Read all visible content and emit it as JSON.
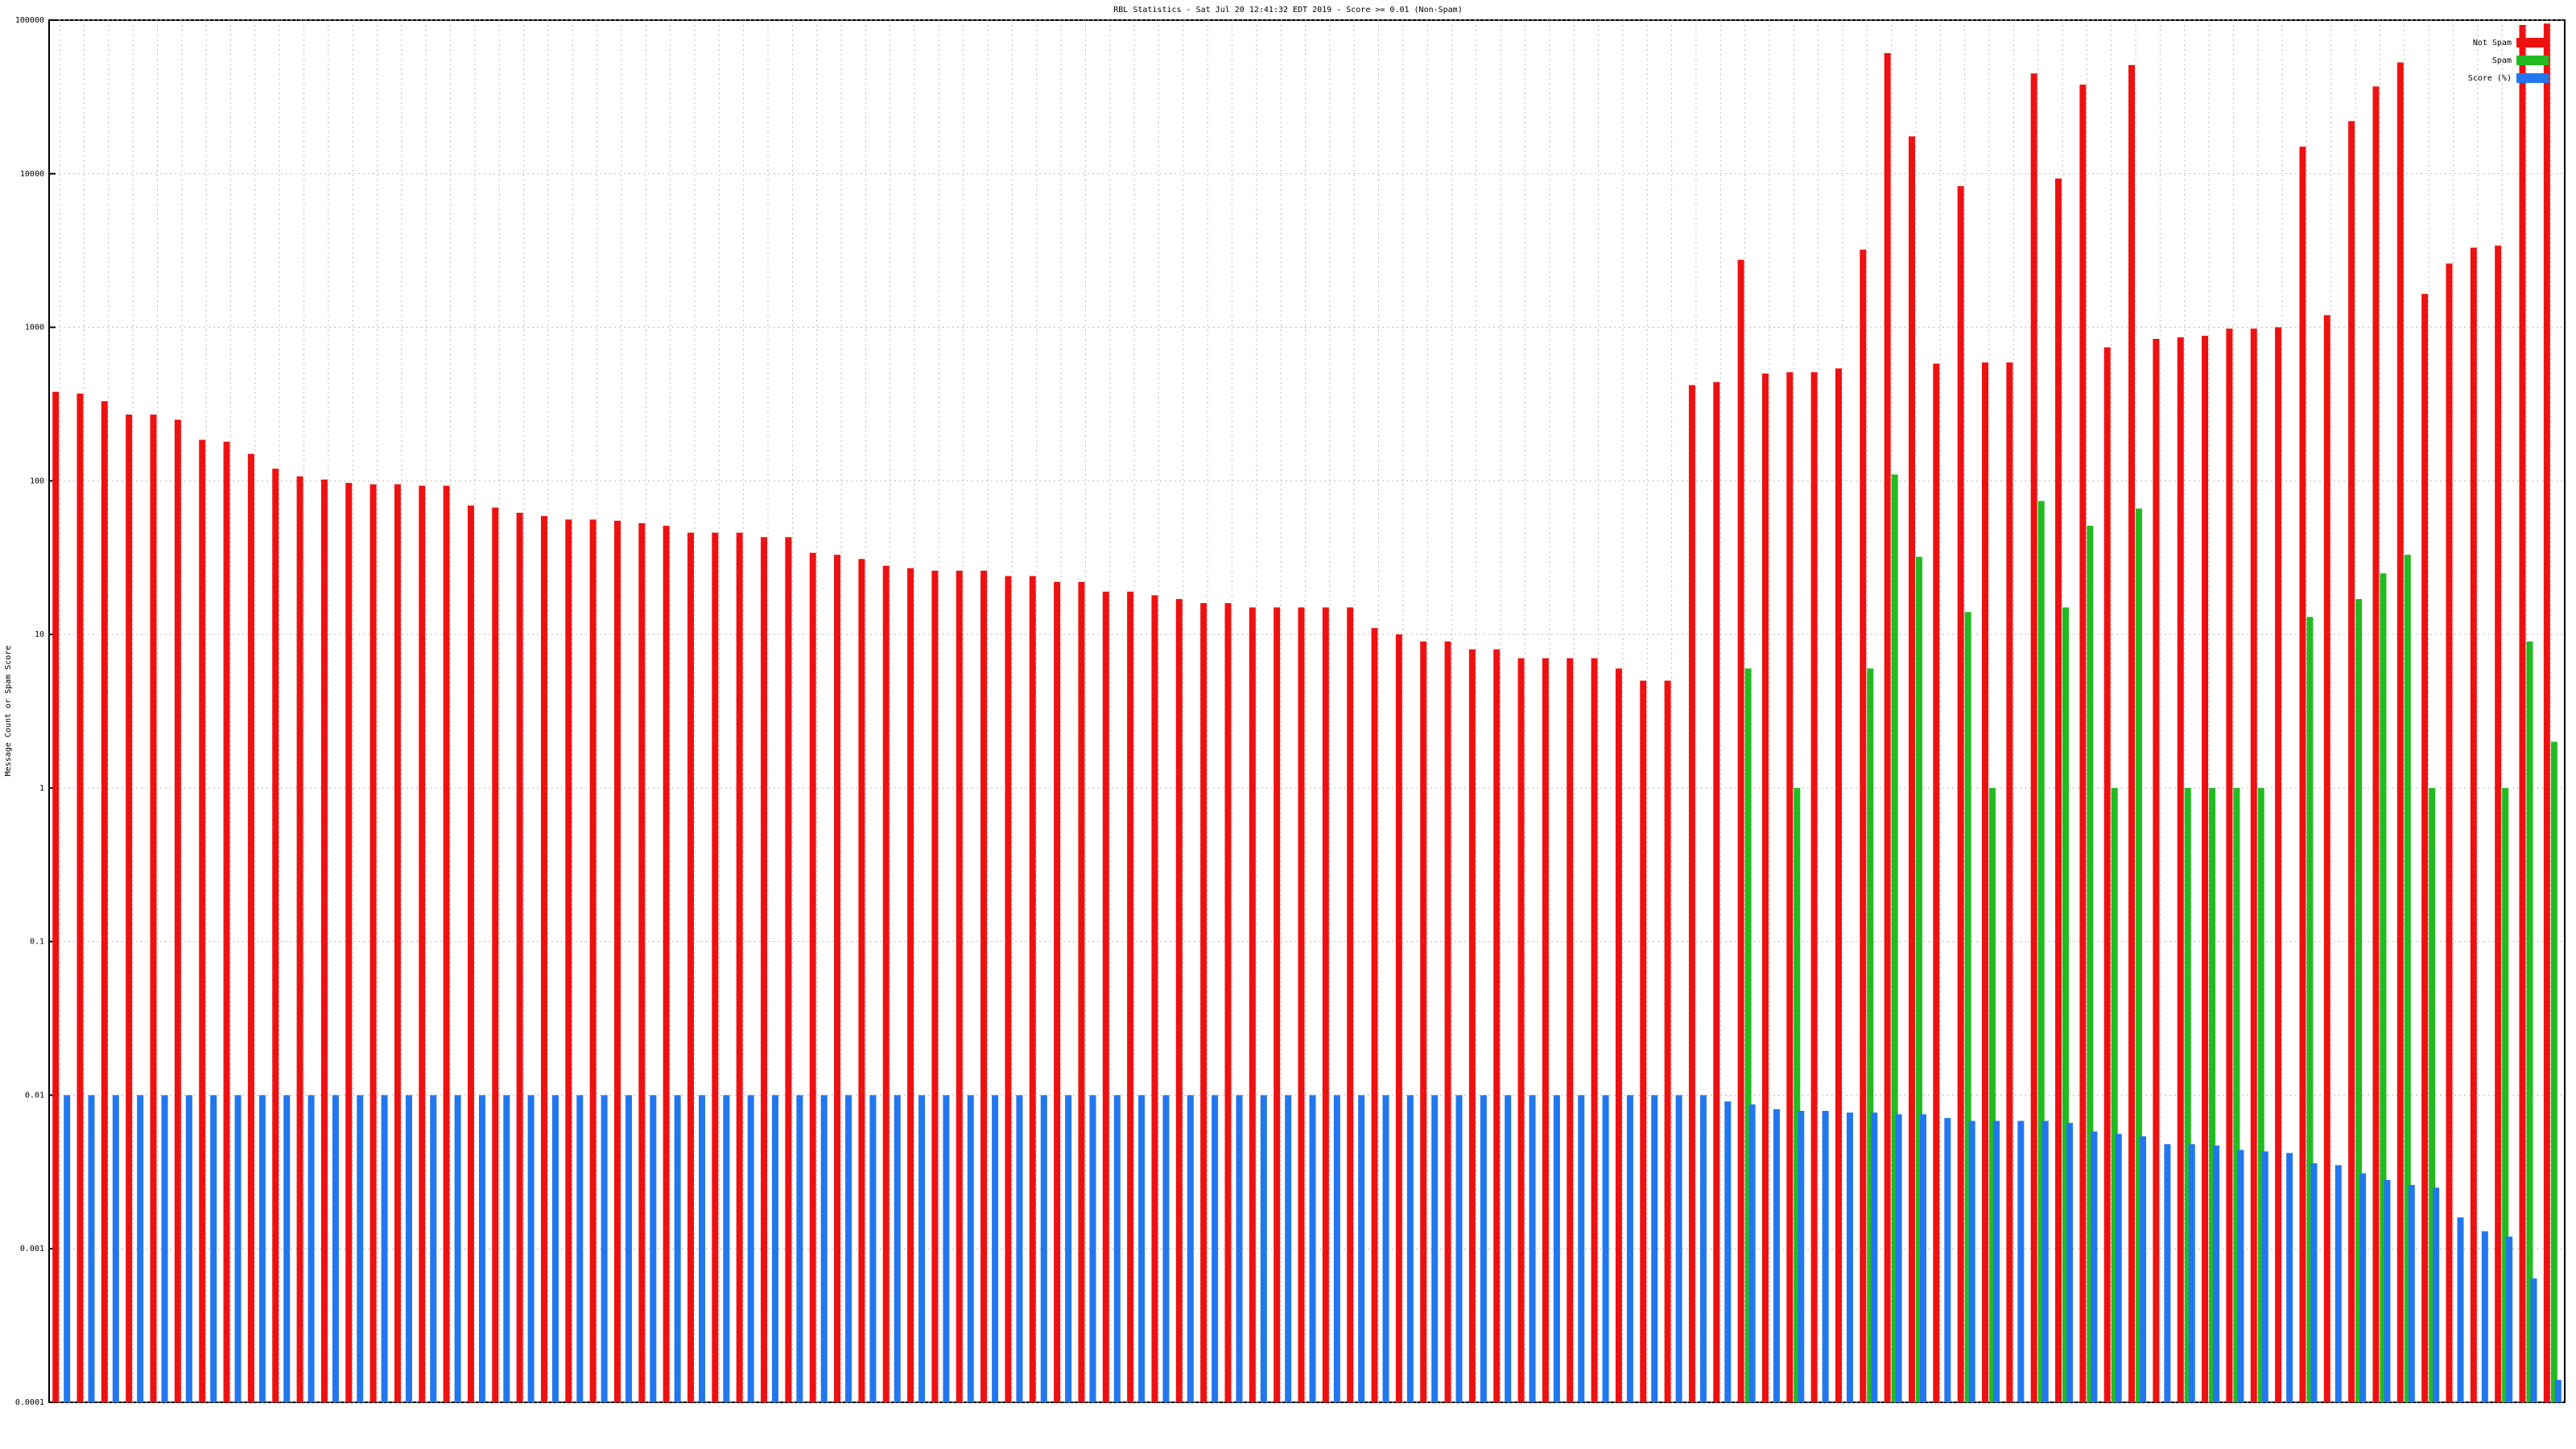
{
  "chart_data": {
    "type": "bar",
    "title": "RBL Statistics - Sat Jul 20 12:41:32 EDT 2019 - Score >= 0.01 (Non-Spam)",
    "y_label": "Message Count or Spam Score",
    "log_scale": true,
    "grid": true,
    "legend": "top-right",
    "ylim": [
      0.0001,
      100000
    ],
    "yticks": [
      0.0001,
      0.001,
      0.01,
      0.1,
      1,
      10,
      100,
      1000,
      10000,
      100000
    ],
    "categories": [
      null,
      null,
      null,
      null,
      null,
      null,
      null,
      null,
      null,
      null,
      null,
      null,
      null,
      null,
      null,
      null,
      null,
      null,
      null,
      null,
      null,
      null,
      null,
      null,
      null,
      null,
      null,
      null,
      null,
      null,
      null,
      null,
      null,
      null,
      null,
      null,
      null,
      null,
      null,
      null,
      null,
      null,
      null,
      null,
      null,
      null,
      null,
      null,
      null,
      null,
      null,
      null,
      null,
      null,
      null,
      null,
      null,
      null,
      null,
      null,
      null,
      null,
      null,
      null,
      null,
      null,
      null,
      null,
      null,
      null,
      null,
      null,
      null,
      null,
      null,
      null,
      null,
      null,
      null,
      null,
      null,
      null,
      null,
      null,
      null,
      null,
      null,
      null,
      null,
      null,
      null,
      null,
      null,
      null,
      null,
      null,
      null,
      null,
      null,
      null,
      null,
      null,
      null
    ],
    "series": [
      {
        "name": "Not Spam",
        "color": "#ee1111",
        "values": [
          380,
          370,
          330,
          270,
          270,
          250,
          185,
          180,
          150,
          120,
          107,
          102,
          97,
          95,
          95,
          93,
          93,
          69,
          67,
          62,
          59,
          56,
          56,
          55,
          53,
          51,
          46,
          46,
          46,
          43,
          43,
          34,
          33,
          31,
          28,
          27,
          26,
          26,
          26,
          24,
          24,
          22,
          22,
          19,
          19,
          18,
          17,
          16,
          16,
          15,
          15,
          15,
          15,
          15,
          11,
          10,
          9,
          9,
          8,
          8,
          7,
          7,
          7,
          7,
          6,
          5,
          5,
          420,
          440,
          2750,
          500,
          510,
          510,
          540,
          3200,
          61000,
          17500,
          580,
          8300,
          590,
          590,
          45000,
          9300,
          38000,
          740,
          51000,
          840,
          860,
          880,
          980,
          980,
          1000,
          15000,
          1200,
          22000,
          37000,
          53000,
          1650,
          2600,
          3300,
          3400,
          93000,
          95000
        ]
      },
      {
        "name": "Spam",
        "color": "#22bb22",
        "values": [
          null,
          null,
          null,
          null,
          null,
          null,
          null,
          null,
          null,
          null,
          null,
          null,
          null,
          null,
          null,
          null,
          null,
          null,
          null,
          null,
          null,
          null,
          null,
          null,
          null,
          null,
          null,
          null,
          null,
          null,
          null,
          null,
          null,
          null,
          null,
          null,
          null,
          null,
          null,
          null,
          null,
          null,
          null,
          null,
          null,
          null,
          null,
          null,
          null,
          null,
          null,
          null,
          null,
          null,
          null,
          null,
          null,
          null,
          null,
          null,
          null,
          null,
          null,
          null,
          null,
          null,
          null,
          null,
          null,
          6,
          null,
          1,
          null,
          null,
          6,
          110,
          32,
          null,
          14,
          1,
          null,
          74,
          15,
          51,
          1,
          66,
          null,
          1,
          1,
          1,
          1,
          null,
          13,
          null,
          17,
          25,
          33,
          1,
          null,
          null,
          1,
          9,
          2
        ]
      },
      {
        "name": "Score (%)",
        "color": "#2277ee",
        "values": [
          0.01,
          0.01,
          0.01,
          0.01,
          0.01,
          0.01,
          0.01,
          0.01,
          0.01,
          0.01,
          0.01,
          0.01,
          0.01,
          0.01,
          0.01,
          0.01,
          0.01,
          0.01,
          0.01,
          0.01,
          0.01,
          0.01,
          0.01,
          0.01,
          0.01,
          0.01,
          0.01,
          0.01,
          0.01,
          0.01,
          0.01,
          0.01,
          0.01,
          0.01,
          0.01,
          0.01,
          0.01,
          0.01,
          0.01,
          0.01,
          0.01,
          0.01,
          0.01,
          0.01,
          0.01,
          0.01,
          0.01,
          0.01,
          0.01,
          0.01,
          0.01,
          0.01,
          0.01,
          0.01,
          0.01,
          0.01,
          0.01,
          0.01,
          0.01,
          0.01,
          0.01,
          0.01,
          0.01,
          0.01,
          0.01,
          0.01,
          0.01,
          0.01,
          0.0091,
          0.0087,
          0.0081,
          0.0079,
          0.0079,
          0.0077,
          0.0077,
          0.0075,
          0.0075,
          0.0071,
          0.0068,
          0.0068,
          0.0068,
          0.0068,
          0.0066,
          0.0058,
          0.0056,
          0.0054,
          0.0048,
          0.0048,
          0.0047,
          0.0044,
          0.0043,
          0.0042,
          0.0036,
          0.0035,
          0.0031,
          0.0028,
          0.0026,
          0.0025,
          0.0016,
          0.0013,
          0.0012,
          0.00064,
          0.00014
        ]
      }
    ]
  }
}
